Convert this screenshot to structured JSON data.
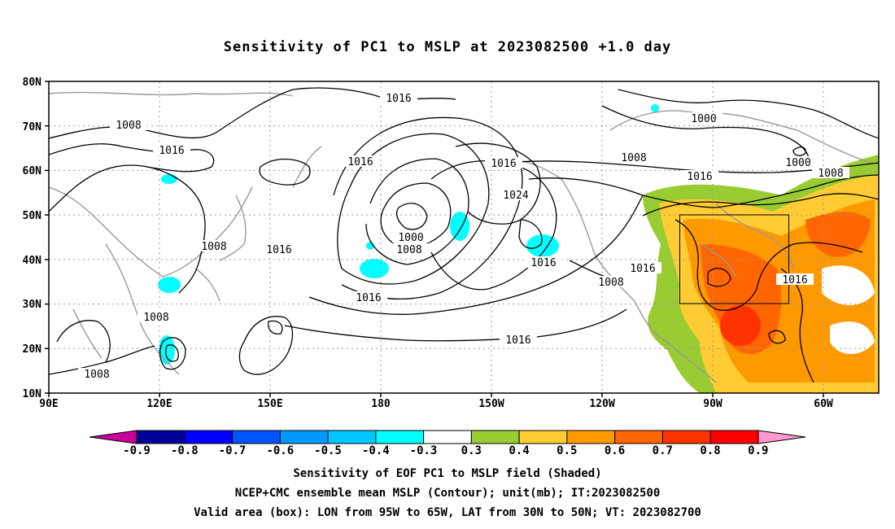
{
  "title": "Sensitivity of PC1 to MSLP at 2023082500 +1.0 day",
  "lat_labels": [
    "80N",
    "70N",
    "60N",
    "50N",
    "40N",
    "30N",
    "20N",
    "10N"
  ],
  "lon_labels": [
    "90E",
    "120E",
    "150E",
    "180",
    "150W",
    "120W",
    "90W",
    "60W"
  ],
  "contour_labels": [
    {
      "text": "1016"
    },
    {
      "text": "1008"
    },
    {
      "text": "1016"
    },
    {
      "text": "1008"
    },
    {
      "text": "1000"
    },
    {
      "text": "1016"
    },
    {
      "text": "1016"
    },
    {
      "text": "1024"
    },
    {
      "text": "1008"
    },
    {
      "text": "1016"
    },
    {
      "text": "1000"
    },
    {
      "text": "1000"
    },
    {
      "text": "1008"
    },
    {
      "text": "1016"
    },
    {
      "text": "1008"
    },
    {
      "text": "1016"
    },
    {
      "text": "1016"
    },
    {
      "text": "1016"
    },
    {
      "text": "1008"
    },
    {
      "text": "1008"
    },
    {
      "text": "1016"
    },
    {
      "text": "1008"
    },
    {
      "text": "1016"
    }
  ],
  "colorbar": {
    "labels": [
      "-0.9",
      "-0.8",
      "-0.7",
      "-0.6",
      "-0.5",
      "-0.4",
      "-0.3",
      "0.3",
      "0.4",
      "0.5",
      "0.6",
      "0.7",
      "0.8",
      "0.9"
    ],
    "colors": [
      "#000099",
      "#0000ff",
      "#0055ff",
      "#0099ff",
      "#00c8ff",
      "#00ffff",
      "#ffffff",
      "#99cc33",
      "#ffcc33",
      "#ff9900",
      "#ff6600",
      "#ff3300",
      "#ff0000"
    ],
    "low_end_color": "#cc0099",
    "high_end_color": "#ff99cc"
  },
  "captions": [
    "Sensitivity of EOF PC1 to MSLP field (Shaded)",
    "NCEP+CMC ensemble mean MSLP (Contour); unit(mb); IT:2023082500",
    "Valid area (box): LON from 95W to 65W, LAT from 30N to 50N; VT: 2023082700"
  ],
  "valid_box": {
    "lon_min": -95,
    "lon_max": -65,
    "lat_min": 30,
    "lat_max": 50
  }
}
